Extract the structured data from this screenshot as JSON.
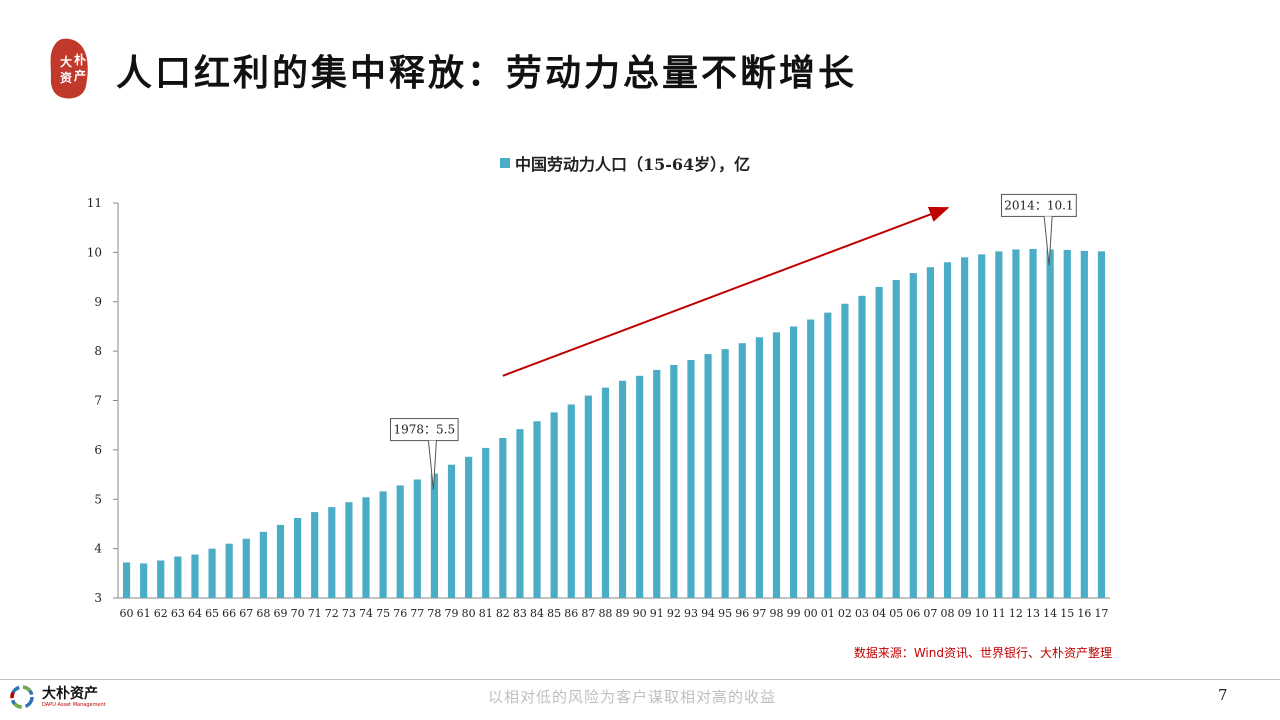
{
  "header": {
    "title": "人口红利的集中释放：劳动力总量不断增长",
    "logo_text": "大朴资产"
  },
  "chart_data": {
    "type": "bar",
    "series": [
      {
        "name": "中国劳动力人口（15-64岁），亿",
        "color": "#4bacc6",
        "values": [
          3.72,
          3.7,
          3.76,
          3.84,
          3.88,
          4.0,
          4.1,
          4.2,
          4.34,
          4.48,
          4.62,
          4.74,
          4.84,
          4.94,
          5.04,
          5.16,
          5.28,
          5.4,
          5.52,
          5.7,
          5.86,
          6.04,
          6.24,
          6.42,
          6.58,
          6.76,
          6.92,
          7.1,
          7.26,
          7.4,
          7.5,
          7.62,
          7.72,
          7.82,
          7.94,
          8.04,
          8.16,
          8.28,
          8.38,
          8.5,
          8.64,
          8.78,
          8.96,
          9.12,
          9.3,
          9.44,
          9.58,
          9.7,
          9.8,
          9.9,
          9.96,
          10.02,
          10.06,
          10.07,
          10.06,
          10.05,
          10.03,
          10.02
        ]
      }
    ],
    "categories": [
      "60",
      "61",
      "62",
      "63",
      "64",
      "65",
      "66",
      "67",
      "68",
      "69",
      "70",
      "71",
      "72",
      "73",
      "74",
      "75",
      "76",
      "77",
      "78",
      "79",
      "80",
      "81",
      "82",
      "83",
      "84",
      "85",
      "86",
      "87",
      "88",
      "89",
      "90",
      "91",
      "92",
      "93",
      "94",
      "95",
      "96",
      "97",
      "98",
      "99",
      "00",
      "01",
      "02",
      "03",
      "04",
      "05",
      "06",
      "07",
      "08",
      "09",
      "10",
      "11",
      "12",
      "13",
      "14",
      "15",
      "16",
      "17"
    ],
    "ylim": [
      3,
      11
    ],
    "yticks": [
      "3",
      "4",
      "5",
      "6",
      "7",
      "8",
      "9",
      "10",
      "11"
    ],
    "grid": false,
    "legend_placement": "top",
    "annotations": [
      {
        "label": "1978：5.5",
        "category_index": 18
      },
      {
        "label": "2014：10.1",
        "category_index": 54
      }
    ],
    "trend_arrow": {
      "color": "#c00000",
      "from": {
        "category_index": 22,
        "value": 7.5
      },
      "to": {
        "category_index": 48,
        "value": 10.9
      }
    }
  },
  "source_note": "数据来源：Wind资讯、世界银行、大朴资产整理",
  "footer": {
    "brand_cn": "大朴资产",
    "brand_en": "DAPU Asset Management",
    "slogan": "以相对低的风险为客户谋取相对高的收益",
    "page_number": "7"
  },
  "colors": {
    "accent": "#c00000",
    "bar": "#4bacc6"
  }
}
